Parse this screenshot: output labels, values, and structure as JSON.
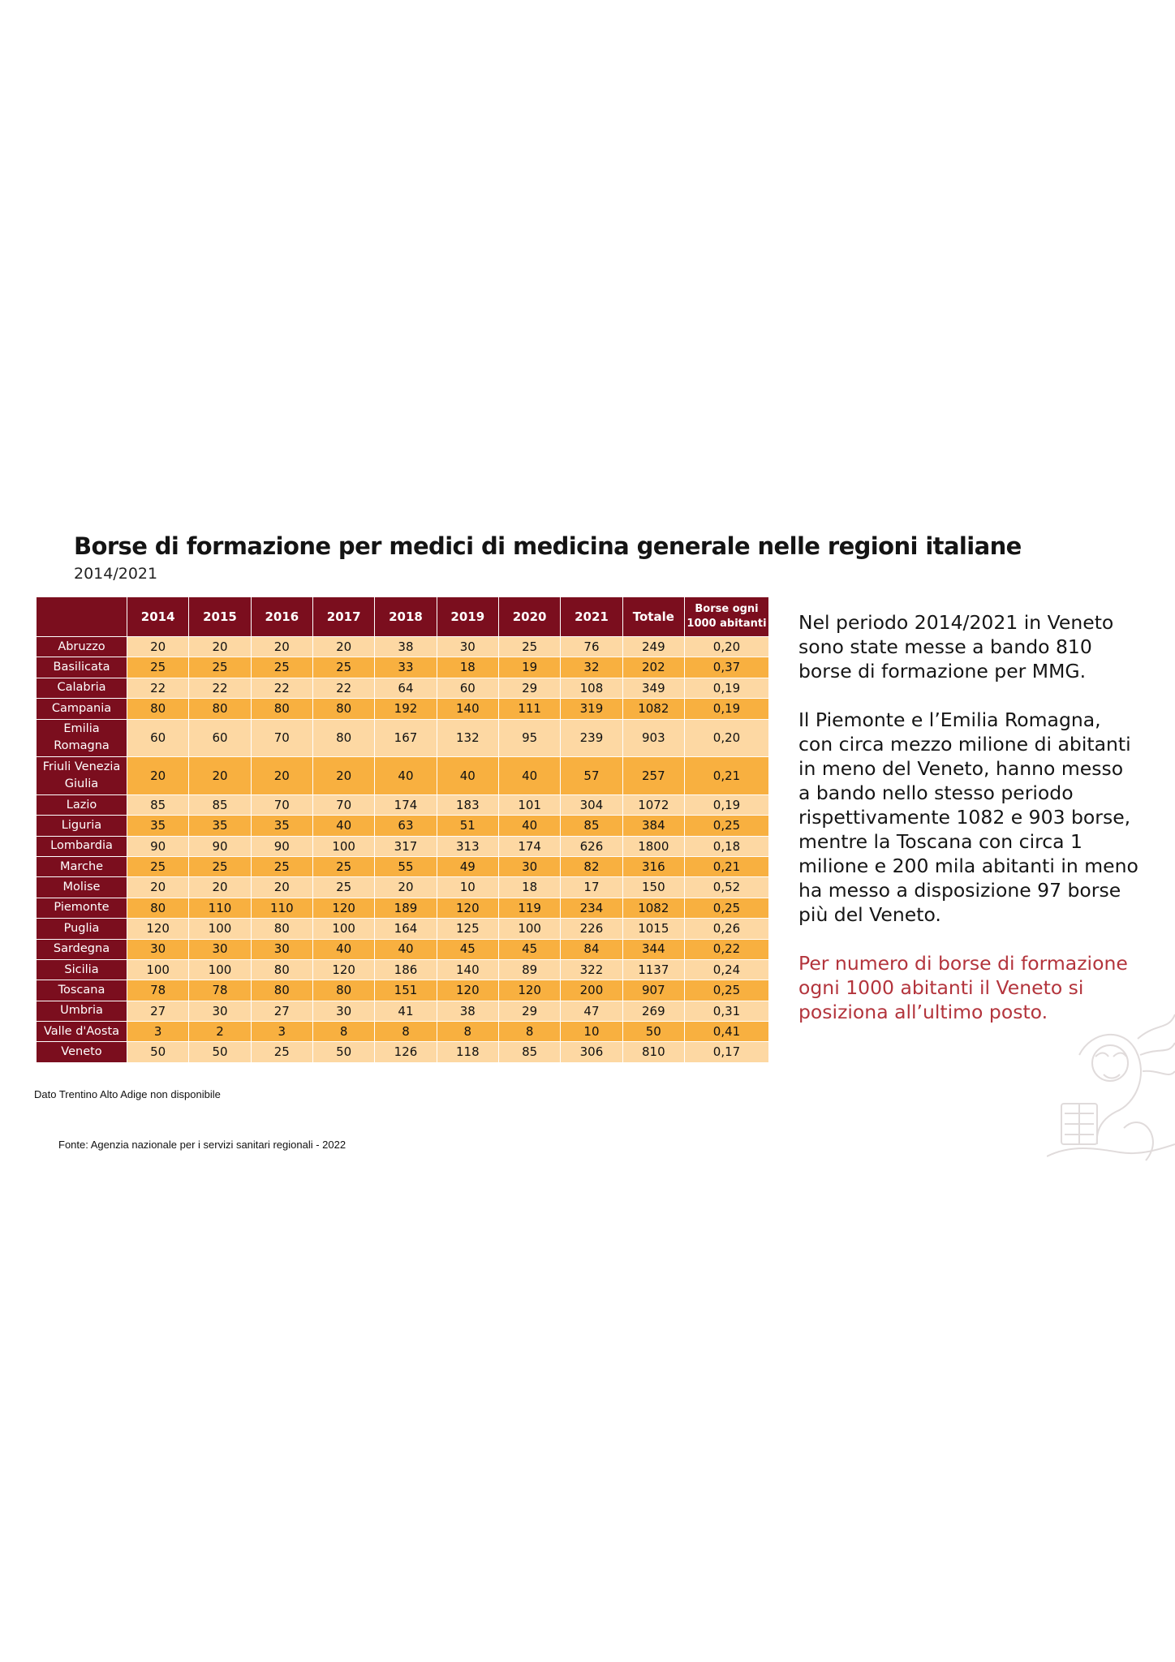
{
  "title": "Borse di formazione per medici di medicina generale nelle regioni italiane",
  "subtitle": "2014/2021",
  "table": {
    "headers": [
      "",
      "2014",
      "2015",
      "2016",
      "2017",
      "2018",
      "2019",
      "2020",
      "2021",
      "Totale"
    ],
    "last_header_line1": "Borse ogni",
    "last_header_line2": "1000 abitanti",
    "rows": [
      {
        "region": "Abruzzo",
        "values": [
          "20",
          "20",
          "20",
          "20",
          "38",
          "30",
          "25",
          "76",
          "249",
          "0,20"
        ]
      },
      {
        "region": "Basilicata",
        "values": [
          "25",
          "25",
          "25",
          "25",
          "33",
          "18",
          "19",
          "32",
          "202",
          "0,37"
        ]
      },
      {
        "region": "Calabria",
        "values": [
          "22",
          "22",
          "22",
          "22",
          "64",
          "60",
          "29",
          "108",
          "349",
          "0,19"
        ]
      },
      {
        "region": "Campania",
        "values": [
          "80",
          "80",
          "80",
          "80",
          "192",
          "140",
          "111",
          "319",
          "1082",
          "0,19"
        ]
      },
      {
        "region": "Emilia Romagna",
        "region_line1": "Emilia",
        "region_line2": "Romagna",
        "values": [
          "60",
          "60",
          "70",
          "80",
          "167",
          "132",
          "95",
          "239",
          "903",
          "0,20"
        ]
      },
      {
        "region": "Friuli Venezia Giulia",
        "region_line1": "Friuli Venezia",
        "region_line2": "Giulia",
        "values": [
          "20",
          "20",
          "20",
          "20",
          "40",
          "40",
          "40",
          "57",
          "257",
          "0,21"
        ]
      },
      {
        "region": "Lazio",
        "values": [
          "85",
          "85",
          "70",
          "70",
          "174",
          "183",
          "101",
          "304",
          "1072",
          "0,19"
        ]
      },
      {
        "region": "Liguria",
        "values": [
          "35",
          "35",
          "35",
          "40",
          "63",
          "51",
          "40",
          "85",
          "384",
          "0,25"
        ]
      },
      {
        "region": "Lombardia",
        "values": [
          "90",
          "90",
          "90",
          "100",
          "317",
          "313",
          "174",
          "626",
          "1800",
          "0,18"
        ]
      },
      {
        "region": "Marche",
        "values": [
          "25",
          "25",
          "25",
          "25",
          "55",
          "49",
          "30",
          "82",
          "316",
          "0,21"
        ]
      },
      {
        "region": "Molise",
        "values": [
          "20",
          "20",
          "20",
          "25",
          "20",
          "10",
          "18",
          "17",
          "150",
          "0,52"
        ]
      },
      {
        "region": "Piemonte",
        "values": [
          "80",
          "110",
          "110",
          "120",
          "189",
          "120",
          "119",
          "234",
          "1082",
          "0,25"
        ]
      },
      {
        "region": "Puglia",
        "values": [
          "120",
          "100",
          "80",
          "100",
          "164",
          "125",
          "100",
          "226",
          "1015",
          "0,26"
        ]
      },
      {
        "region": "Sardegna",
        "values": [
          "30",
          "30",
          "30",
          "40",
          "40",
          "45",
          "45",
          "84",
          "344",
          "0,22"
        ]
      },
      {
        "region": "Sicilia",
        "values": [
          "100",
          "100",
          "80",
          "120",
          "186",
          "140",
          "89",
          "322",
          "1137",
          "0,24"
        ]
      },
      {
        "region": "Toscana",
        "values": [
          "78",
          "78",
          "80",
          "80",
          "151",
          "120",
          "120",
          "200",
          "907",
          "0,25"
        ]
      },
      {
        "region": "Umbria",
        "values": [
          "27",
          "30",
          "27",
          "30",
          "41",
          "38",
          "29",
          "47",
          "269",
          "0,31"
        ]
      },
      {
        "region": "Valle d'Aosta",
        "values": [
          "3",
          "2",
          "3",
          "8",
          "8",
          "8",
          "8",
          "10",
          "50",
          "0,41"
        ]
      },
      {
        "region": "Veneto",
        "values": [
          "50",
          "50",
          "25",
          "50",
          "126",
          "118",
          "85",
          "306",
          "810",
          "0,17"
        ]
      }
    ]
  },
  "text": {
    "p1": "Nel periodo 2014/2021 in Veneto sono state messe a bando 810 borse di formazione per MMG.",
    "p2": "Il Piemonte e l’Emilia Romagna, con circa mezzo milione di abitanti in meno del Veneto, hanno messo a bando nello stesso periodo rispettivamente 1082 e 903 borse, mentre la Toscana con circa 1 milione e 200 mila abitanti in meno ha messo a disposizione 97 borse più del Veneto.",
    "p3": "Per numero di borse di formazione ogni 1000 abitanti il Veneto si posiziona all’ultimo posto."
  },
  "note": "Dato Trentino Alto Adige non disponibile",
  "source": "Fonte: Agenzia nazionale per i servizi sanitari regionali - 2022",
  "colors": {
    "header_bg": "#7b0e1e",
    "row_light": "#fdd8a3",
    "row_dark": "#f8b040",
    "highlight_text": "#b3343c"
  },
  "icons": {
    "emblem": "lion-of-saint-mark-watermark-icon"
  }
}
